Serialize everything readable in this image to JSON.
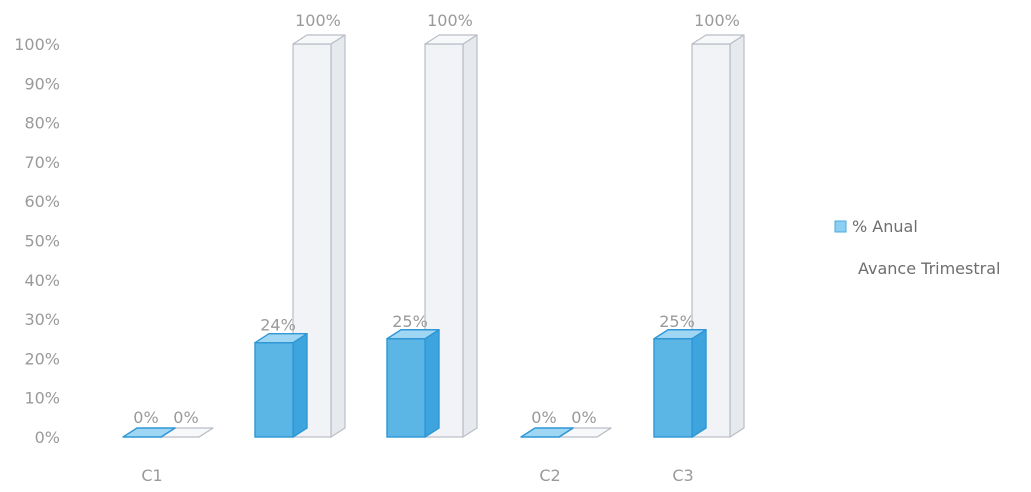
{
  "chart_data": {
    "type": "bar",
    "title": "",
    "xlabel": "",
    "ylabel": "",
    "ylim": [
      0,
      100
    ],
    "yticks": [
      "0%",
      "10%",
      "20%",
      "30%",
      "40%",
      "50%",
      "60%",
      "70%",
      "80%",
      "90%",
      "100%"
    ],
    "categories": [
      "C1",
      "",
      "",
      "C2",
      "C3"
    ],
    "series": [
      {
        "name": "% Anual",
        "color": "#5bb6e6",
        "values": [
          0,
          24,
          25,
          0,
          25
        ],
        "labels": [
          "0%",
          "24%",
          "25%",
          "0%",
          "25%"
        ]
      },
      {
        "name": "Avance Trimestral",
        "color": "#eef1f5",
        "values": [
          0,
          100,
          100,
          0,
          100
        ],
        "labels": [
          "0%",
          "100%",
          "100%",
          "0%",
          "100%"
        ]
      }
    ],
    "legend": "right",
    "grid": false,
    "style": "3d"
  }
}
